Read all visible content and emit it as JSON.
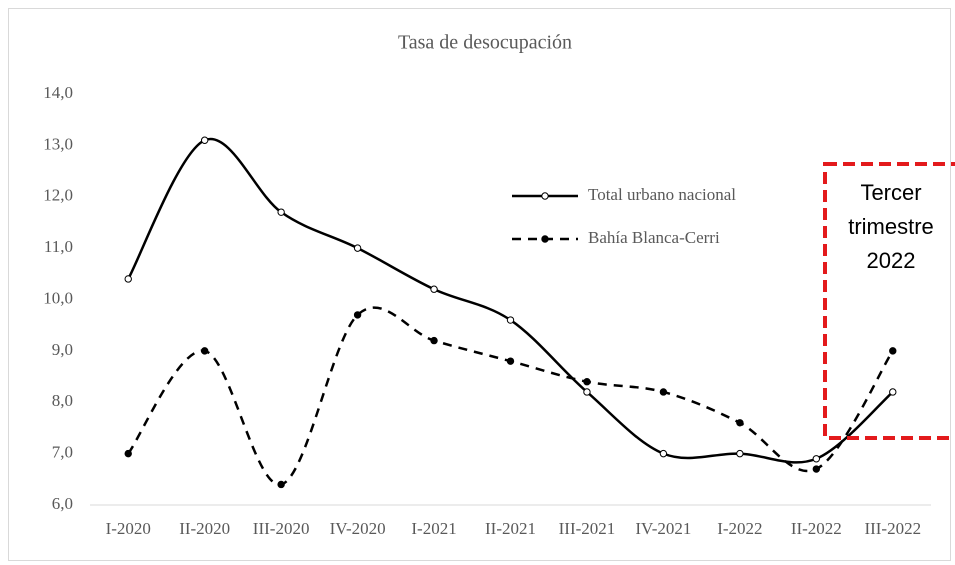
{
  "chart_data": {
    "type": "line",
    "title": "Tasa de desocupación",
    "categories": [
      "I-2020",
      "II-2020",
      "III-2020",
      "IV-2020",
      "I-2021",
      "II-2021",
      "III-2021",
      "IV-2021",
      "I-2022",
      "II-2022",
      "III-2022"
    ],
    "series": [
      {
        "name": "Total urbano nacional",
        "color": "#000000",
        "values": [
          10.4,
          13.1,
          11.7,
          11.0,
          10.2,
          9.6,
          8.2,
          7.0,
          7.0,
          6.9,
          8.2
        ]
      },
      {
        "name": "Bahía Blanca-Cerri",
        "color": "#000000",
        "values": [
          7.0,
          9.0,
          6.4,
          9.7,
          9.2,
          8.8,
          8.4,
          8.2,
          7.6,
          6.7,
          9.0
        ]
      }
    ],
    "ylim": [
      6,
      14
    ],
    "yticks": [
      {
        "value": 6,
        "label": "6,0"
      },
      {
        "value": 7,
        "label": "7,0"
      },
      {
        "value": 8,
        "label": "8,0"
      },
      {
        "value": 9,
        "label": "9,0"
      },
      {
        "value": 10,
        "label": "10,0"
      },
      {
        "value": 11,
        "label": "11,0"
      },
      {
        "value": 12,
        "label": "12,0"
      },
      {
        "value": 13,
        "label": "13,0"
      },
      {
        "value": 14,
        "label": "14,0"
      }
    ],
    "annotation": [
      "Tercer",
      "trimestre",
      "2022"
    ],
    "annotation_color": "#e31a1c"
  }
}
